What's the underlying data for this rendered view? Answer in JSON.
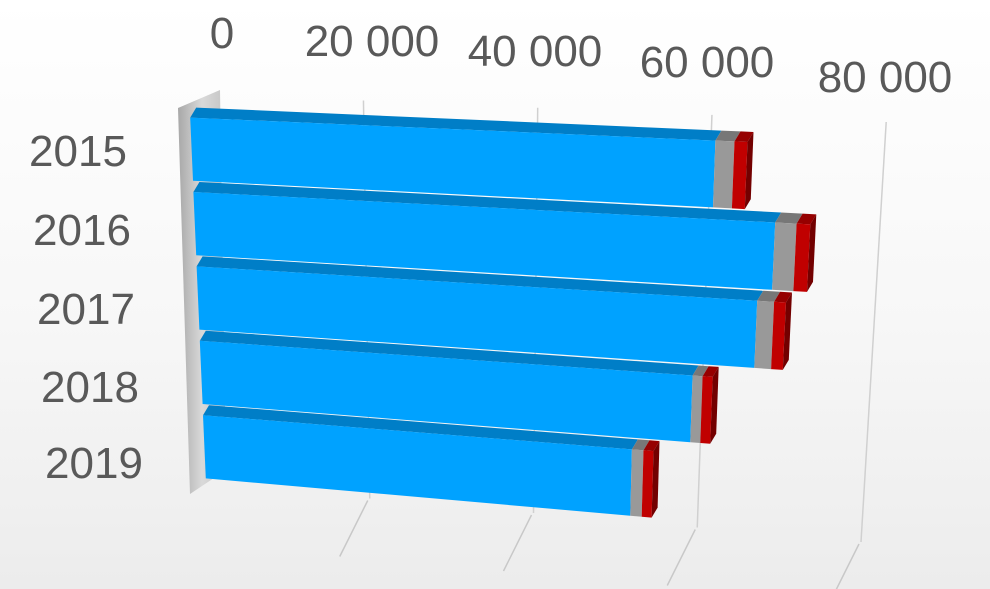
{
  "chart_data": {
    "type": "bar",
    "orientation": "horizontal",
    "style": "3d-stacked",
    "categories": [
      "2015",
      "2016",
      "2017",
      "2018",
      "2019"
    ],
    "series": [
      {
        "color": "#00a2ff",
        "values": [
          60500,
          67800,
          66100,
          58800,
          51800
        ]
      },
      {
        "color": "#999999",
        "values": [
          2200,
          2500,
          2000,
          1200,
          1400
        ]
      },
      {
        "color": "#c00000",
        "values": [
          1500,
          1600,
          1400,
          1200,
          1200
        ]
      }
    ],
    "x_ticks": [
      "0",
      "20 000",
      "40 000",
      "60 000",
      "80 000"
    ],
    "xlim": [
      0,
      80000
    ],
    "grid": true,
    "legend": "none"
  }
}
